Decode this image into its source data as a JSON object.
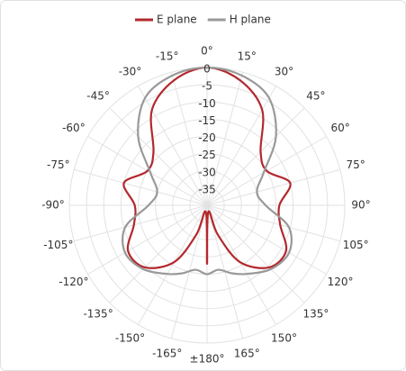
{
  "chart_data": {
    "type": "polar",
    "theta": [
      -180,
      -170,
      -160,
      -150,
      -135,
      -120,
      -105,
      -90,
      -75,
      -60,
      -45,
      -30,
      -15,
      0,
      15,
      30,
      45,
      60,
      75,
      90,
      105,
      120,
      135,
      150,
      160,
      170,
      180
    ],
    "series": [
      {
        "name": "E plane",
        "color": "#b3282d",
        "values": [
          -23,
          -38,
          -31,
          -21,
          -14.5,
          -13.5,
          -18,
          -19,
          -15,
          -20,
          -18,
          -8,
          -2.5,
          0,
          -2.5,
          -8,
          -18,
          -20,
          -15,
          -19,
          -18,
          -13.5,
          -14.5,
          -21,
          -31,
          -38,
          -23
        ]
      },
      {
        "name": "H plane",
        "color": "#999999",
        "values": [
          -20,
          -21,
          -19,
          -17,
          -13.8,
          -12.5,
          -15.4,
          -23,
          -25,
          -21,
          -11.7,
          -4,
          -1,
          0,
          -1,
          -4,
          -11.7,
          -21,
          -25,
          -23,
          -15.4,
          -12.5,
          -13.8,
          -17,
          -19,
          -21,
          -20
        ]
      }
    ],
    "rlim": [
      -40,
      0
    ],
    "rticks": [
      0,
      -5,
      -10,
      -15,
      -20,
      -25,
      -30,
      -35
    ],
    "thetaticks": [
      {
        "value": 0,
        "label": "0°"
      },
      {
        "value": 15,
        "label": "15°"
      },
      {
        "value": 30,
        "label": "30°"
      },
      {
        "value": 45,
        "label": "45°"
      },
      {
        "value": 60,
        "label": "60°"
      },
      {
        "value": 75,
        "label": "75°"
      },
      {
        "value": 90,
        "label": "90°"
      },
      {
        "value": 105,
        "label": "105°"
      },
      {
        "value": 120,
        "label": "120°"
      },
      {
        "value": 135,
        "label": "135°"
      },
      {
        "value": 150,
        "label": "150°"
      },
      {
        "value": 165,
        "label": "165°"
      },
      {
        "value": 180,
        "label": "±180°"
      },
      {
        "value": -165,
        "label": "-165°"
      },
      {
        "value": -150,
        "label": "-150°"
      },
      {
        "value": -135,
        "label": "-135°"
      },
      {
        "value": -120,
        "label": "-120°"
      },
      {
        "value": -105,
        "label": "-105°"
      },
      {
        "value": -90,
        "label": "-90°"
      },
      {
        "value": -75,
        "label": "-75°"
      },
      {
        "value": -60,
        "label": "-60°"
      },
      {
        "value": -45,
        "label": "-45°"
      },
      {
        "value": -30,
        "label": "-30°"
      },
      {
        "value": -15,
        "label": "-15°"
      }
    ],
    "grid": true,
    "legend": "top"
  }
}
